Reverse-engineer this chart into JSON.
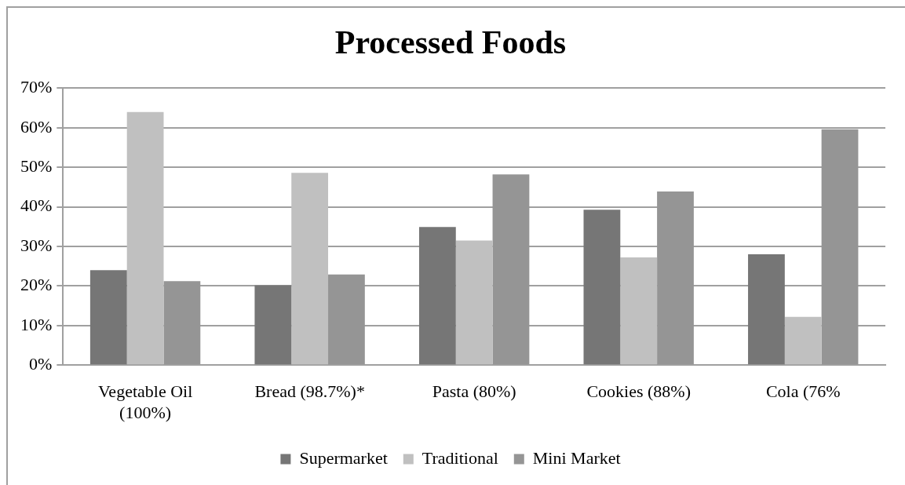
{
  "chart_data": {
    "type": "bar",
    "title": "Processed Foods",
    "categories": [
      "Vegetable Oil (100%)",
      "Bread (98.7%)*",
      "Pasta (80%)",
      "Cookies (88%)",
      "Cola (76%"
    ],
    "series": [
      {
        "name": "Supermarket",
        "color": "#767676",
        "values": [
          24,
          20.2,
          34.9,
          39.3,
          28
        ]
      },
      {
        "name": "Traditional",
        "color": "#c0c0c0",
        "values": [
          64,
          48.6,
          31.5,
          27.2,
          12.2
        ]
      },
      {
        "name": "Mini Market",
        "color": "#959595",
        "values": [
          21.2,
          22.9,
          48.2,
          43.9,
          59.6
        ]
      }
    ],
    "ylim": [
      0,
      70
    ],
    "yticks": [
      {
        "value": 0,
        "label": "0%"
      },
      {
        "value": 10,
        "label": "10%"
      },
      {
        "value": 20,
        "label": "20%"
      },
      {
        "value": 30,
        "label": "30%"
      },
      {
        "value": 40,
        "label": "40%"
      },
      {
        "value": 50,
        "label": "50%"
      },
      {
        "value": 60,
        "label": "60%"
      },
      {
        "value": 70,
        "label": "70%"
      }
    ],
    "grid": "y",
    "legend": "bottom"
  }
}
